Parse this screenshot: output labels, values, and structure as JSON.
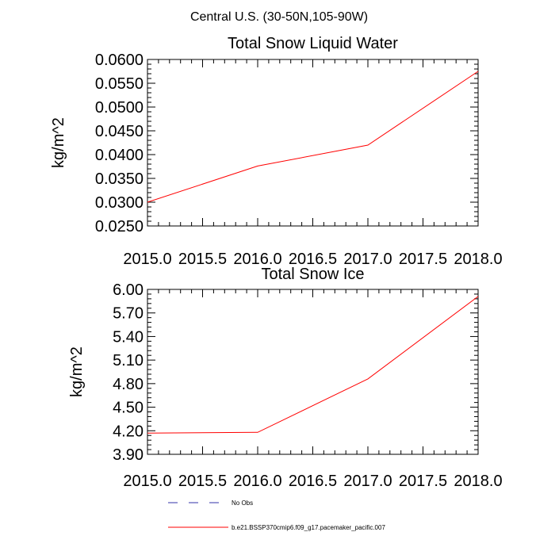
{
  "main_title": "Central U.S. (30-50N,105-90W)",
  "colors": {
    "series": "#ff0000",
    "obs": "#3333aa",
    "axis": "#000000"
  },
  "chart_data": [
    {
      "type": "line",
      "title": "Total Snow Liquid Water",
      "xlabel": "",
      "ylabel": "kg/m^2",
      "xlim": [
        2015.0,
        2018.0
      ],
      "ylim": [
        0.025,
        0.06
      ],
      "x_ticks": [
        "2015.0",
        "2015.5",
        "2016.0",
        "2016.5",
        "2017.0",
        "2017.5",
        "2018.0"
      ],
      "y_ticks": [
        "0.0250",
        "0.0300",
        "0.0350",
        "0.0400",
        "0.0450",
        "0.0500",
        "0.0550",
        "0.0600"
      ],
      "series": [
        {
          "name": "b.e21.BSSP370cmip6.f09_g17.pacemaker_pacific.007",
          "x": [
            2015,
            2016,
            2017,
            2018
          ],
          "values": [
            0.03,
            0.0376,
            0.042,
            0.0575
          ]
        }
      ]
    },
    {
      "type": "line",
      "title": "Total Snow Ice",
      "xlabel": "",
      "ylabel": "kg/m^2",
      "xlim": [
        2015.0,
        2018.0
      ],
      "ylim": [
        3.9,
        6.0
      ],
      "x_ticks": [
        "2015.0",
        "2015.5",
        "2016.0",
        "2016.5",
        "2017.0",
        "2017.5",
        "2018.0"
      ],
      "y_ticks": [
        "3.90",
        "4.20",
        "4.50",
        "4.80",
        "5.10",
        "5.40",
        "5.70",
        "6.00"
      ],
      "series": [
        {
          "name": "b.e21.BSSP370cmip6.f09_g17.pacemaker_pacific.007",
          "x": [
            2015,
            2016,
            2017,
            2018
          ],
          "values": [
            4.17,
            4.18,
            4.86,
            5.91
          ]
        }
      ]
    }
  ],
  "legend": [
    {
      "label": "No Obs",
      "style": "dashed",
      "color": "#3333aa"
    },
    {
      "label": "b.e21.BSSP370cmip6.f09_g17.pacemaker_pacific.007",
      "style": "solid",
      "color": "#ff0000"
    }
  ]
}
